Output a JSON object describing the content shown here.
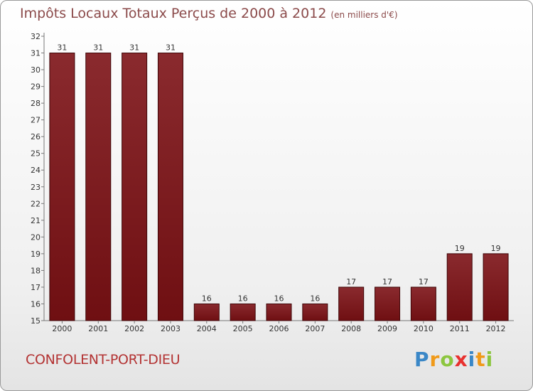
{
  "header": {
    "title": "Impôts Locaux Totaux Perçus de 2000 à 2012",
    "unit": "(en milliers d'€)"
  },
  "footer": {
    "commune": "CONFOLENT-PORT-DIEU",
    "logo": [
      "P",
      "r",
      "o",
      "x",
      "i",
      "t",
      "i"
    ]
  },
  "colors": {
    "bar": "#6f0f12",
    "title": "#8b4a4a",
    "commune": "#b33333",
    "logo": [
      "#3a87c7",
      "#f09a1a",
      "#8cc63f",
      "#e8312f",
      "#3a87c7",
      "#f09a1a",
      "#8cc63f"
    ]
  },
  "chart_data": {
    "type": "bar",
    "title": "Impôts Locaux Totaux Perçus de 2000 à 2012",
    "xlabel": "",
    "ylabel": "(en milliers d'€)",
    "categories": [
      "2000",
      "2001",
      "2002",
      "2003",
      "2004",
      "2005",
      "2006",
      "2007",
      "2008",
      "2009",
      "2010",
      "2011",
      "2012"
    ],
    "values": [
      31,
      31,
      31,
      31,
      16,
      16,
      16,
      16,
      17,
      17,
      17,
      19,
      19
    ],
    "ylim": [
      15,
      32
    ],
    "yticks": [
      15,
      16,
      17,
      18,
      19,
      20,
      21,
      22,
      23,
      24,
      25,
      26,
      27,
      28,
      29,
      30,
      31,
      32
    ],
    "grid": false,
    "data_labels": true
  }
}
